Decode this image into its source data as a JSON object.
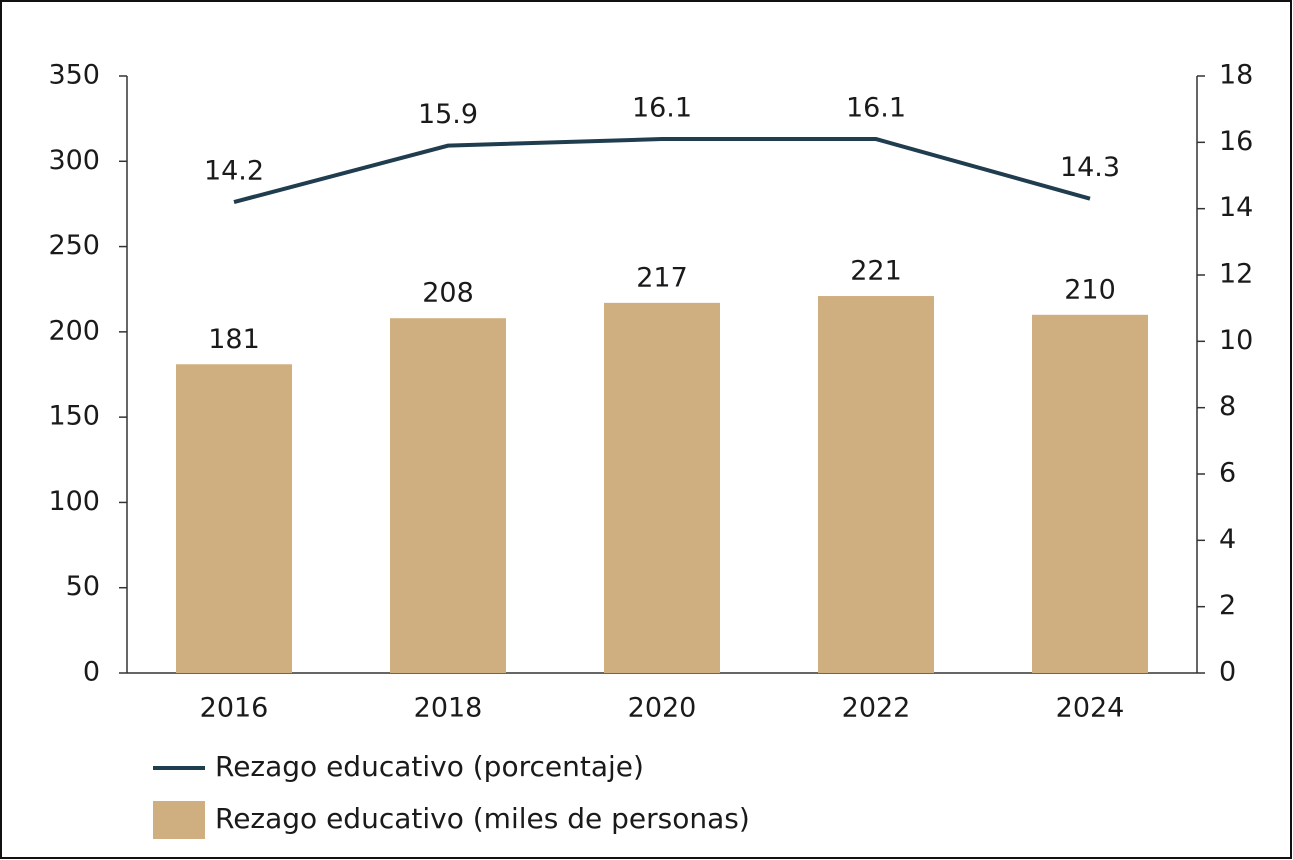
{
  "chart_data": {
    "type": "bar",
    "categories": [
      "2016",
      "2018",
      "2020",
      "2022",
      "2024"
    ],
    "series": [
      {
        "name": "Rezago educativo (porcentaje)",
        "type": "line",
        "axis": "y2",
        "color": "#1f3d4f",
        "values": [
          14.2,
          15.9,
          16.1,
          16.1,
          14.3
        ]
      },
      {
        "name": "Rezago educativo (miles de personas)",
        "type": "bar",
        "axis": "y",
        "color": "#cfae7f",
        "values": [
          181,
          208,
          217,
          221,
          210
        ]
      }
    ],
    "ylim": [
      0,
      350
    ],
    "yticks": [
      0,
      50,
      100,
      150,
      200,
      250,
      300,
      350
    ],
    "y2lim": [
      0,
      18
    ],
    "y2ticks": [
      0,
      2,
      4,
      6,
      8,
      10,
      12,
      14,
      16,
      18
    ],
    "legend": "bottom-left",
    "grid": false
  }
}
